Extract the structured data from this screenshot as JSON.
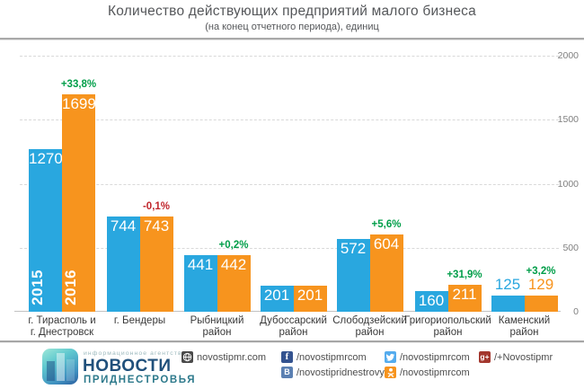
{
  "chart_data": {
    "type": "bar",
    "title": "Количество действующих предприятий малого бизнеса",
    "subtitle": "(на конец отчетного периода), единиц",
    "categories": [
      "г. Тирасполь и\nг. Днестровск",
      "г. Бендеры",
      "Рыбницкий\nрайон",
      "Дубоссарский\nрайон",
      "Слободзейский\nрайон",
      "Григориопольский\nрайон",
      "Каменский\nрайон"
    ],
    "series": [
      {
        "name": "2015",
        "color": "#29a7df",
        "values": [
          1270,
          744,
          441,
          201,
          572,
          160,
          125
        ]
      },
      {
        "name": "2016",
        "color": "#f7941e",
        "values": [
          1699,
          743,
          442,
          201,
          604,
          211,
          129
        ]
      }
    ],
    "change_labels": [
      "+33,8%",
      "-0,1%",
      "+0,2%",
      "",
      "+5,6%",
      "+31,9%",
      "+3,2%"
    ],
    "positive_color": "#009e49",
    "negative_color": "#c1272d",
    "y_ticks": [
      0,
      500,
      1000,
      1500,
      2000
    ],
    "ylim": [
      0,
      2000
    ],
    "grid": "horizontal dashed",
    "legend": "year labels 2015/2016 printed vertically inside first pair of bars"
  },
  "footer": {
    "agency_tagline": "информационное агентство",
    "agency_name": "НОВОСТИ",
    "agency_name2": "ПРИДНЕСТРОВЬЯ",
    "website": {
      "icon": "globe-icon",
      "label": "novostipmr.com"
    },
    "links": [
      {
        "icon": "facebook-icon",
        "label": "/novostipmrcom",
        "color": "#34538f"
      },
      {
        "icon": "vk-icon",
        "label": "/novostipridnestrovya",
        "color": "#5b80b2"
      },
      {
        "icon": "twitter-icon",
        "label": "/novostipmrcom",
        "color": "#55acee"
      },
      {
        "icon": "odnoklassniki-icon",
        "label": "/novostipmrcom",
        "color": "#f7941e"
      },
      {
        "icon": "googleplus-icon",
        "label": "/+Novostipmr",
        "color": "#a3372e"
      }
    ]
  }
}
